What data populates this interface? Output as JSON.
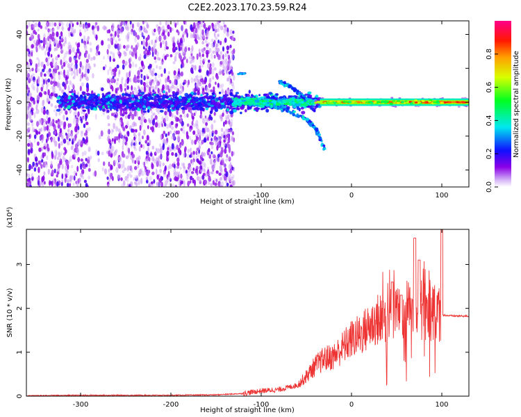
{
  "title": "C2E2.2023.170.23.59.R24",
  "chart_data": [
    {
      "type": "heatmap",
      "xlabel": "Height of straight line (km)",
      "ylabel": "Frequency (Hz)",
      "xlim": [
        -360,
        130
      ],
      "ylim": [
        -50,
        48
      ],
      "xticks": [
        -300,
        -200,
        -100,
        0,
        100
      ],
      "yticks": [
        -40,
        -20,
        0,
        20,
        40
      ],
      "colorbar": {
        "label": "Normalized spectral amplitude",
        "range": [
          0,
          1
        ],
        "ticks": [
          "0.0",
          "0.2",
          "0.4",
          "0.6",
          "0.8"
        ],
        "colormap": "purple-blue-cyan-green-yellow-red-magenta"
      },
      "features": {
        "main_band_center_hz": 0,
        "noise_region_km": [
          -360,
          -150
        ],
        "branches": [
          {
            "x": [
              -90,
              -70,
              -50,
              -40,
              -30
            ],
            "y": [
              -2,
              -5,
              -10,
              -15,
              -28
            ]
          },
          {
            "x": [
              -80,
              -70,
              -60,
              -50
            ],
            "y": [
              12,
              10,
              6,
              2
            ]
          }
        ],
        "cw_line_km": [
          -40,
          130
        ]
      }
    },
    {
      "type": "line",
      "xlabel": "Height of straight line (km)",
      "ylabel": "SNR (10 * v/v)",
      "y_multiplier": "(x10⁴)",
      "xlim": [
        -360,
        130
      ],
      "ylim": [
        0,
        3.8
      ],
      "xticks": [
        -300,
        -200,
        -100,
        0,
        100
      ],
      "yticks": [
        0,
        1,
        2,
        3
      ],
      "series": [
        {
          "color": "#ee3333",
          "x": [
            -360,
            -300,
            -200,
            -150,
            -120,
            -100,
            -80,
            -60,
            -50,
            -40,
            -30,
            -20,
            -10,
            0,
            10,
            20,
            30,
            40,
            50,
            60,
            70,
            80,
            90,
            95,
            100,
            110,
            130
          ],
          "y": [
            0.01,
            0.02,
            0.02,
            0.03,
            0.06,
            0.12,
            0.15,
            0.25,
            0.45,
            0.7,
            0.85,
            0.9,
            1.1,
            1.3,
            1.4,
            1.6,
            1.75,
            1.8,
            1.9,
            1.95,
            2.0,
            1.95,
            1.9,
            1.85,
            1.85,
            1.83,
            1.82
          ],
          "peaks": [
            {
              "x": 45,
              "y": 2.6
            },
            {
              "x": 55,
              "y": 2.3
            },
            {
              "x": 70,
              "y": 3.6
            },
            {
              "x": 75,
              "y": 3.1
            },
            {
              "x": 100,
              "y": 3.8
            }
          ]
        }
      ]
    }
  ]
}
